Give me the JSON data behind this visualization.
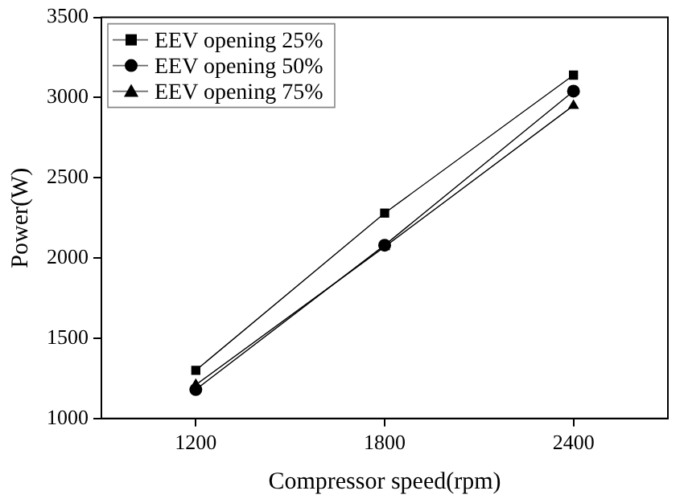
{
  "chart_data": {
    "type": "line",
    "xlabel": "Compressor speed(rpm)",
    "ylabel": "Power(W)",
    "x": [
      1200,
      1800,
      2400
    ],
    "xlim": [
      900,
      2700
    ],
    "xticks": [
      1200,
      1800,
      2400
    ],
    "ylim": [
      1000,
      3500
    ],
    "yticks": [
      1000,
      1500,
      2000,
      2500,
      3000,
      3500
    ],
    "grid": false,
    "legend": "top left",
    "series": [
      {
        "name": "EEV opening 25%",
        "color": "#000000",
        "marker": "square",
        "values": [
          1300,
          2280,
          3140
        ]
      },
      {
        "name": "EEV opening 50%",
        "color": "#000000",
        "marker": "circle",
        "values": [
          1180,
          2080,
          3040
        ]
      },
      {
        "name": "EEV opening 75%",
        "color": "#000000",
        "marker": "triangle",
        "values": [
          1210,
          2070,
          2950
        ]
      }
    ]
  }
}
